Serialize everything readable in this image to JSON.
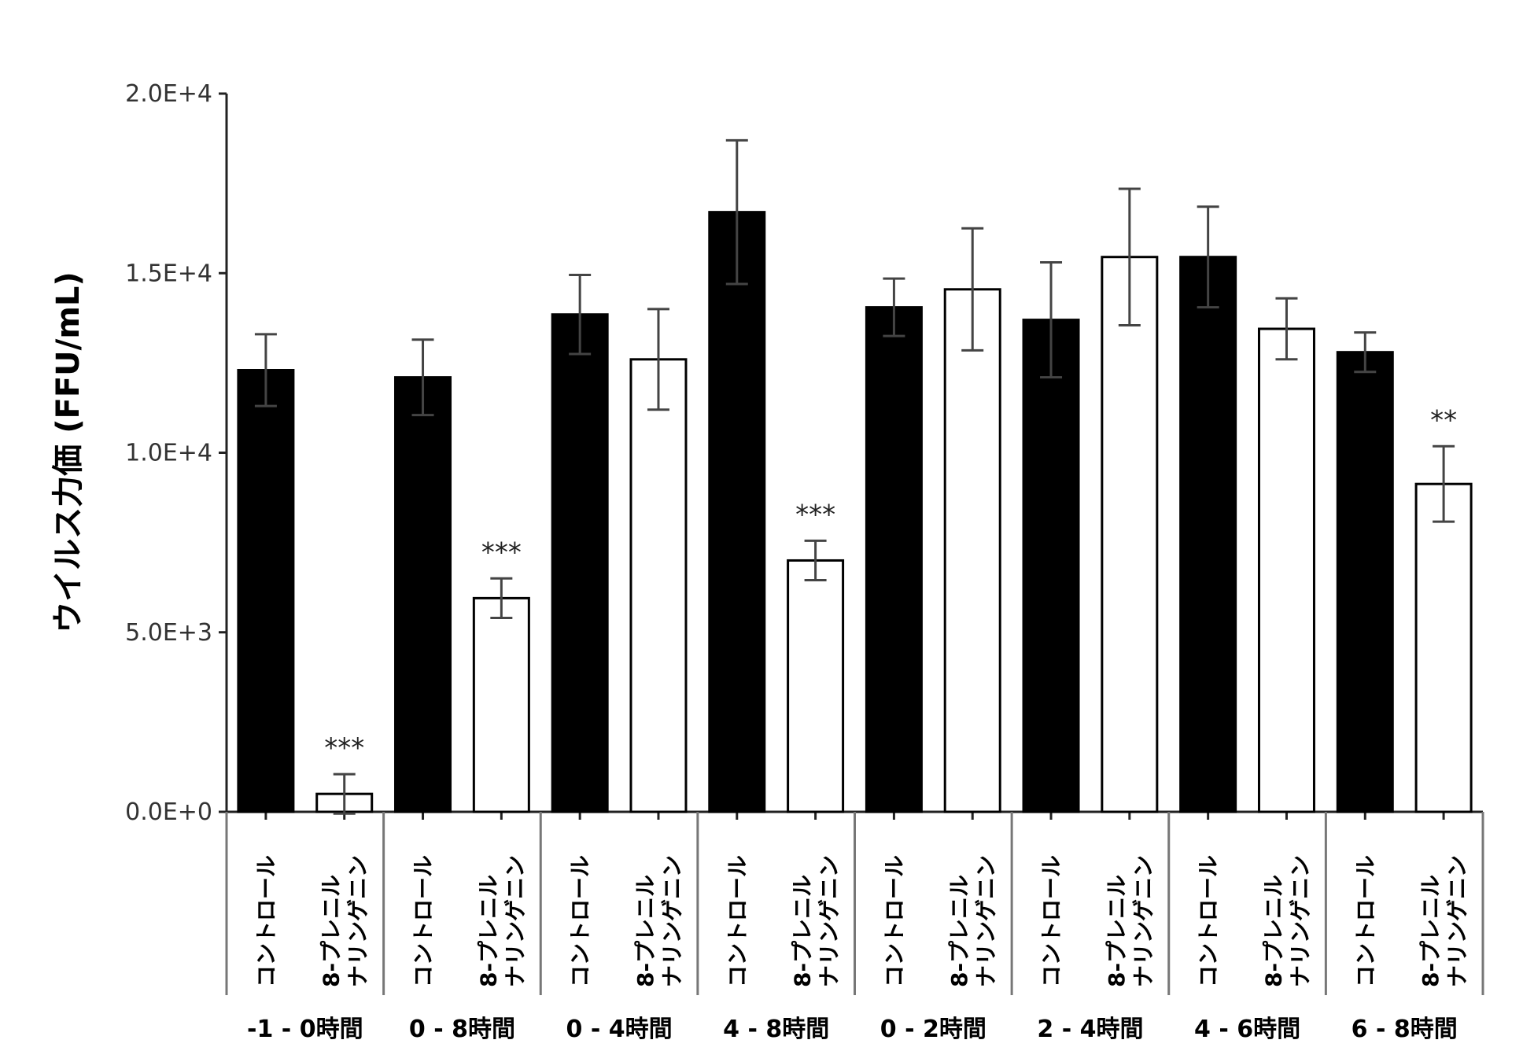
{
  "chart_data": {
    "type": "bar",
    "title": "",
    "xlabel": "",
    "ylabel": "ウイルス力価 (FFU/mL)",
    "ylim": [
      0,
      20000
    ],
    "yticks": [
      "0.0E+0",
      "5.0E+3",
      "1.0E+4",
      "1.5E+4",
      "2.0E+4"
    ],
    "ytick_values": [
      0,
      5000,
      10000,
      15000,
      20000
    ],
    "grid": false,
    "groups": [
      "-1 - 0時間",
      "0 - 8時間",
      "0 - 4時間",
      "4 - 8時間",
      "0 - 2時間",
      "2 - 4時間",
      "4 - 6時間",
      "6 - 8時間"
    ],
    "category_labels": {
      "control": [
        "コントロール"
      ],
      "treated": [
        "8-プレニル",
        "ナリンゲニン"
      ]
    },
    "series": [
      {
        "key": "control",
        "color": "#000000",
        "values": [
          12300,
          12100,
          13850,
          16700,
          14050,
          13700,
          15450,
          12800
        ],
        "errors": [
          1000,
          1050,
          1100,
          2000,
          800,
          1600,
          1400,
          550
        ],
        "significance": [
          "",
          "",
          "",
          "",
          "",
          "",
          "",
          ""
        ]
      },
      {
        "key": "treated",
        "color": "#ffffff",
        "values": [
          500,
          5950,
          12600,
          7000,
          14550,
          15450,
          13450,
          9130
        ],
        "errors": [
          550,
          550,
          1400,
          550,
          1700,
          1900,
          850,
          1050
        ],
        "significance": [
          "***",
          "***",
          "",
          "***",
          "",
          "",
          "",
          "**"
        ]
      }
    ]
  }
}
